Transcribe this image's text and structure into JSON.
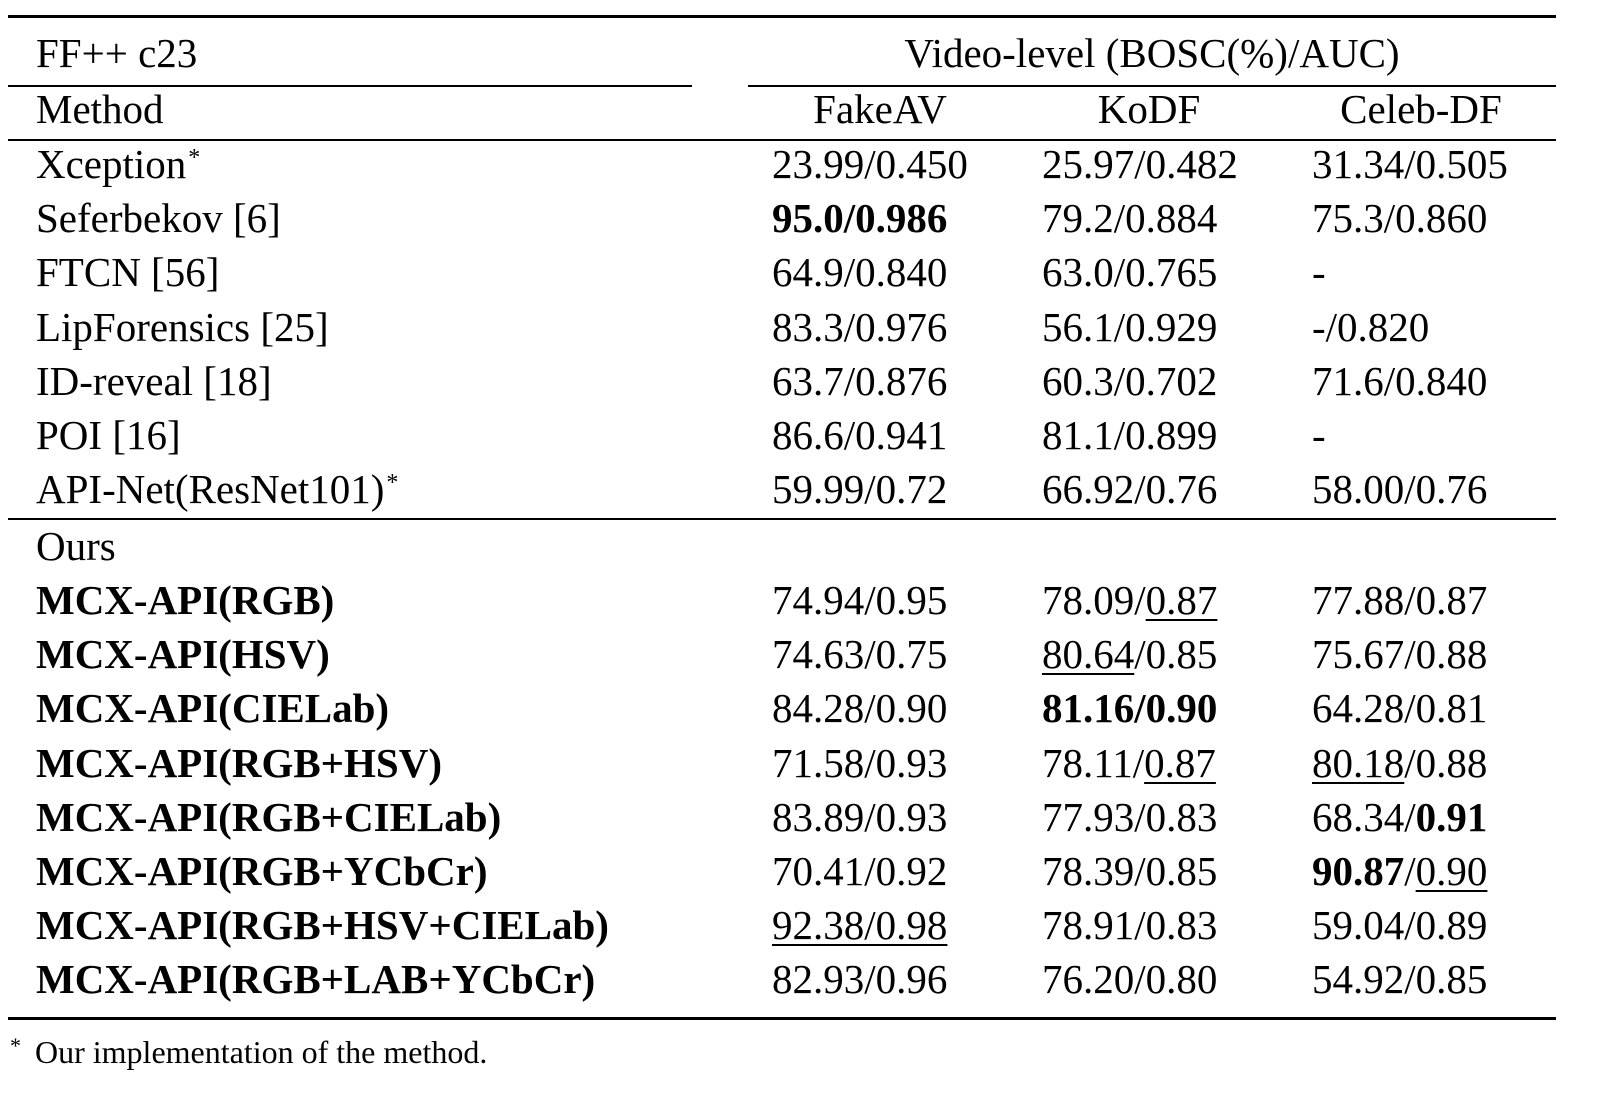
{
  "table": {
    "dataset_label": "FF++ c23",
    "group_header": "Video-level (BOSC(%)/AUC)",
    "method_header": "Method",
    "columns": [
      "FakeAV",
      "KoDF",
      "Celeb-DF"
    ],
    "baseline_rows": [
      {
        "method": "Xception",
        "star": "*",
        "cells": [
          {
            "parts": [
              {
                "text": "23.99/0.450",
                "bold": false,
                "underline": false
              }
            ]
          },
          {
            "parts": [
              {
                "text": "25.97/0.482",
                "bold": false,
                "underline": false
              }
            ]
          },
          {
            "parts": [
              {
                "text": "31.34/0.505",
                "bold": false,
                "underline": false
              }
            ]
          }
        ]
      },
      {
        "method": "Seferbekov [6]",
        "star": "",
        "cells": [
          {
            "parts": [
              {
                "text": "95.0/0.986",
                "bold": true,
                "underline": false
              }
            ]
          },
          {
            "parts": [
              {
                "text": "79.2/0.884",
                "bold": false,
                "underline": false
              }
            ]
          },
          {
            "parts": [
              {
                "text": "75.3/0.860",
                "bold": false,
                "underline": false
              }
            ]
          }
        ]
      },
      {
        "method": "FTCN [56]",
        "star": "",
        "cells": [
          {
            "parts": [
              {
                "text": "64.9/0.840",
                "bold": false,
                "underline": false
              }
            ]
          },
          {
            "parts": [
              {
                "text": "63.0/0.765",
                "bold": false,
                "underline": false
              }
            ]
          },
          {
            "parts": [
              {
                "text": "-",
                "bold": false,
                "underline": false
              }
            ]
          }
        ]
      },
      {
        "method": "LipForensics [25]",
        "star": "",
        "cells": [
          {
            "parts": [
              {
                "text": "83.3/0.976",
                "bold": false,
                "underline": false
              }
            ]
          },
          {
            "parts": [
              {
                "text": "56.1/0.929",
                "bold": false,
                "underline": false
              }
            ]
          },
          {
            "parts": [
              {
                "text": "-/0.820",
                "bold": false,
                "underline": false
              }
            ]
          }
        ]
      },
      {
        "method": "ID-reveal [18]",
        "star": "",
        "cells": [
          {
            "parts": [
              {
                "text": "63.7/0.876",
                "bold": false,
                "underline": false
              }
            ]
          },
          {
            "parts": [
              {
                "text": "60.3/0.702",
                "bold": false,
                "underline": false
              }
            ]
          },
          {
            "parts": [
              {
                "text": "71.6/0.840",
                "bold": false,
                "underline": false
              }
            ]
          }
        ]
      },
      {
        "method": "POI [16]",
        "star": "",
        "cells": [
          {
            "parts": [
              {
                "text": "86.6/0.941",
                "bold": false,
                "underline": false
              }
            ]
          },
          {
            "parts": [
              {
                "text": "81.1/0.899",
                "bold": false,
                "underline": false
              }
            ]
          },
          {
            "parts": [
              {
                "text": "-",
                "bold": false,
                "underline": false
              }
            ]
          }
        ]
      },
      {
        "method": "API-Net(ResNet101)",
        "star": "*",
        "cells": [
          {
            "parts": [
              {
                "text": "59.99/0.72",
                "bold": false,
                "underline": false
              }
            ]
          },
          {
            "parts": [
              {
                "text": "66.92/0.76",
                "bold": false,
                "underline": false
              }
            ]
          },
          {
            "parts": [
              {
                "text": "58.00/0.76",
                "bold": false,
                "underline": false
              }
            ]
          }
        ]
      }
    ],
    "ours_label": "Ours",
    "ours_rows": [
      {
        "method": "MCX-API(RGB)",
        "cells": [
          {
            "parts": [
              {
                "text": "74.94/0.95",
                "bold": false,
                "underline": false
              }
            ]
          },
          {
            "parts": [
              {
                "text": "78.09/",
                "bold": false,
                "underline": false
              },
              {
                "text": "0.87",
                "bold": false,
                "underline": true
              }
            ]
          },
          {
            "parts": [
              {
                "text": "77.88/0.87",
                "bold": false,
                "underline": false
              }
            ]
          }
        ]
      },
      {
        "method": "MCX-API(HSV)",
        "cells": [
          {
            "parts": [
              {
                "text": "74.63/0.75",
                "bold": false,
                "underline": false
              }
            ]
          },
          {
            "parts": [
              {
                "text": "80.64",
                "bold": false,
                "underline": true
              },
              {
                "text": "/0.85",
                "bold": false,
                "underline": false
              }
            ]
          },
          {
            "parts": [
              {
                "text": "75.67/0.88",
                "bold": false,
                "underline": false
              }
            ]
          }
        ]
      },
      {
        "method": "MCX-API(CIELab)",
        "cells": [
          {
            "parts": [
              {
                "text": "84.28/0.90",
                "bold": false,
                "underline": false
              }
            ]
          },
          {
            "parts": [
              {
                "text": "81.16/0.90",
                "bold": true,
                "underline": false
              }
            ]
          },
          {
            "parts": [
              {
                "text": "64.28/0.81",
                "bold": false,
                "underline": false
              }
            ]
          }
        ]
      },
      {
        "method": "MCX-API(RGB+HSV)",
        "cells": [
          {
            "parts": [
              {
                "text": "71.58/0.93",
                "bold": false,
                "underline": false
              }
            ]
          },
          {
            "parts": [
              {
                "text": "78.11/",
                "bold": false,
                "underline": false
              },
              {
                "text": "0.87",
                "bold": false,
                "underline": true
              }
            ]
          },
          {
            "parts": [
              {
                "text": "80.18",
                "bold": false,
                "underline": true
              },
              {
                "text": "/0.88",
                "bold": false,
                "underline": false
              }
            ]
          }
        ]
      },
      {
        "method": "MCX-API(RGB+CIELab)",
        "cells": [
          {
            "parts": [
              {
                "text": "83.89/0.93",
                "bold": false,
                "underline": false
              }
            ]
          },
          {
            "parts": [
              {
                "text": "77.93/0.83",
                "bold": false,
                "underline": false
              }
            ]
          },
          {
            "parts": [
              {
                "text": "68.34/",
                "bold": false,
                "underline": false
              },
              {
                "text": "0.91",
                "bold": true,
                "underline": false
              }
            ]
          }
        ]
      },
      {
        "method": "MCX-API(RGB+YCbCr)",
        "cells": [
          {
            "parts": [
              {
                "text": "70.41/0.92",
                "bold": false,
                "underline": false
              }
            ]
          },
          {
            "parts": [
              {
                "text": "78.39/0.85",
                "bold": false,
                "underline": false
              }
            ]
          },
          {
            "parts": [
              {
                "text": "90.87",
                "bold": true,
                "underline": false
              },
              {
                "text": "/",
                "bold": false,
                "underline": false
              },
              {
                "text": "0.90",
                "bold": false,
                "underline": true
              }
            ]
          }
        ]
      },
      {
        "method": "MCX-API(RGB+HSV+CIELab)",
        "cells": [
          {
            "parts": [
              {
                "text": "92.38/0.98",
                "bold": false,
                "underline": true
              }
            ]
          },
          {
            "parts": [
              {
                "text": "78.91/0.83",
                "bold": false,
                "underline": false
              }
            ]
          },
          {
            "parts": [
              {
                "text": "59.04/0.89",
                "bold": false,
                "underline": false
              }
            ]
          }
        ]
      },
      {
        "method": "MCX-API(RGB+LAB+YCbCr)",
        "cells": [
          {
            "parts": [
              {
                "text": "82.93/0.96",
                "bold": false,
                "underline": false
              }
            ]
          },
          {
            "parts": [
              {
                "text": "76.20/0.80",
                "bold": false,
                "underline": false
              }
            ]
          },
          {
            "parts": [
              {
                "text": "54.92/0.85",
                "bold": false,
                "underline": false
              }
            ]
          }
        ]
      }
    ]
  },
  "footnote": {
    "mark": "*",
    "text": "Our implementation of the method."
  }
}
